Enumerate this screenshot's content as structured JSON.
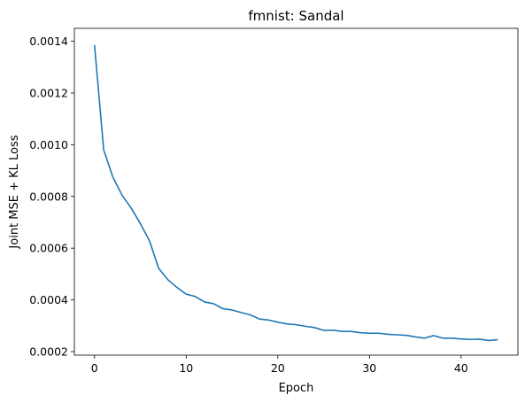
{
  "chart_data": {
    "type": "line",
    "title": "fmnist: Sandal",
    "xlabel": "Epoch",
    "ylabel": "Joint MSE + KL Loss",
    "xlim": [
      -2.2,
      46.2
    ],
    "ylim": [
      0.0001862,
      0.00145
    ],
    "xticks": [
      0,
      10,
      20,
      30,
      40
    ],
    "yticks": [
      0.0002,
      0.0004,
      0.0006,
      0.0008,
      0.001,
      0.0012,
      0.0014
    ],
    "ytick_labels": [
      "0.0002",
      "0.0004",
      "0.0006",
      "0.0008",
      "0.0010",
      "0.0012",
      "0.0014"
    ],
    "xtick_labels": [
      "0",
      "10",
      "20",
      "30",
      "40"
    ],
    "grid": false,
    "legend": "none",
    "series": [
      {
        "color": "#1f77b4",
        "x": [
          0,
          1,
          2,
          3,
          4,
          5,
          6,
          7,
          8,
          9,
          10,
          11,
          12,
          13,
          14,
          15,
          16,
          17,
          18,
          19,
          20,
          21,
          22,
          23,
          24,
          25,
          26,
          27,
          28,
          29,
          30,
          31,
          32,
          33,
          34,
          35,
          36,
          37,
          38,
          39,
          40,
          41,
          42,
          43,
          44
        ],
        "y": [
          0.001385,
          0.00098,
          0.000875,
          0.000805,
          0.000755,
          0.000695,
          0.000628,
          0.000522,
          0.000478,
          0.000448,
          0.000422,
          0.000413,
          0.000392,
          0.000385,
          0.000366,
          0.000361,
          0.000351,
          0.000342,
          0.000326,
          0.000322,
          0.000314,
          0.000307,
          0.000304,
          0.000298,
          0.000293,
          0.000282,
          0.000283,
          0.000278,
          0.000278,
          0.000273,
          0.000271,
          0.000271,
          0.000267,
          0.000265,
          0.000263,
          0.000257,
          0.000252,
          0.000262,
          0.000252,
          0.000252,
          0.000249,
          0.000247,
          0.000248,
          0.000243,
          0.000246
        ]
      }
    ]
  }
}
